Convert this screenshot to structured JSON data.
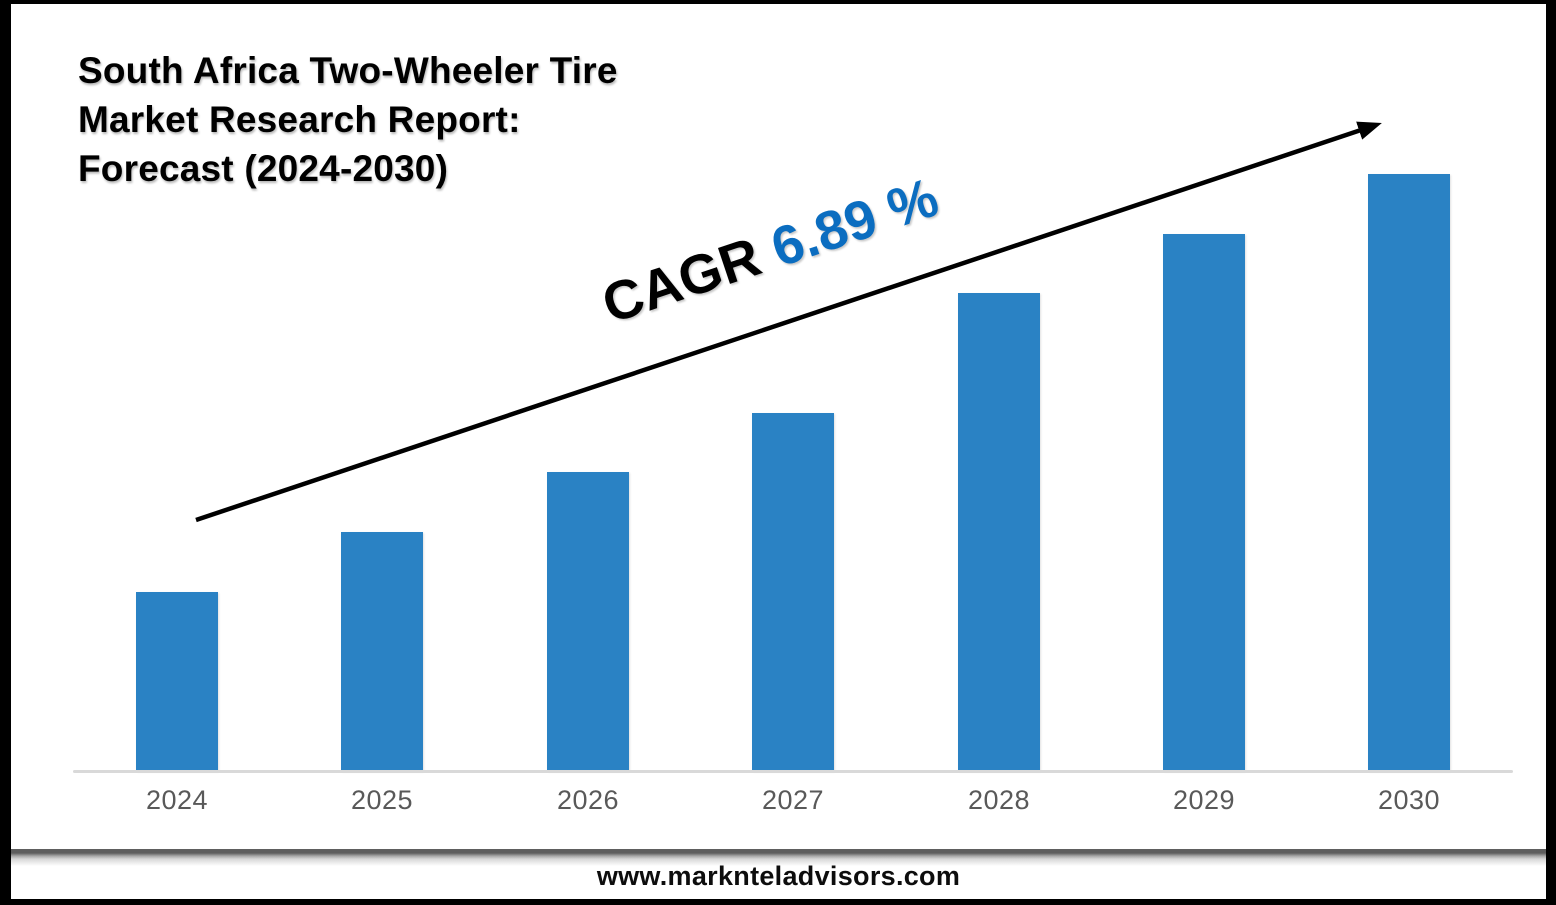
{
  "page": {
    "title": "South Africa Two-Wheeler Tire\nMarket Research Report:\nForecast (2024-2030)",
    "footer_url": "www.marknteladvisors.com"
  },
  "cagr": {
    "label": "CAGR",
    "value": "6.89 %"
  },
  "colors": {
    "bar": "#2A82C4",
    "cagr_value": "#0B6DC0",
    "axis_line": "#D9D9D9",
    "tick_label": "#595959",
    "title_text": "#000000",
    "arrow": "#000000"
  },
  "chart_data": {
    "type": "bar",
    "title": "South Africa Two-Wheeler Tire Market Research Report: Forecast (2024-2030)",
    "categories": [
      "2024",
      "2025",
      "2026",
      "2027",
      "2028",
      "2029",
      "2030"
    ],
    "values": [
      30,
      40,
      50,
      60,
      80,
      90,
      100
    ],
    "ylabel": "",
    "xlabel": "",
    "ylim": [
      0,
      100
    ],
    "value_note": "No numeric axis shown; values estimated as % of tallest (2030) bar",
    "annotation": "CAGR 6.89 %",
    "trend_arrow": true,
    "legend": false,
    "gridlines": false
  }
}
